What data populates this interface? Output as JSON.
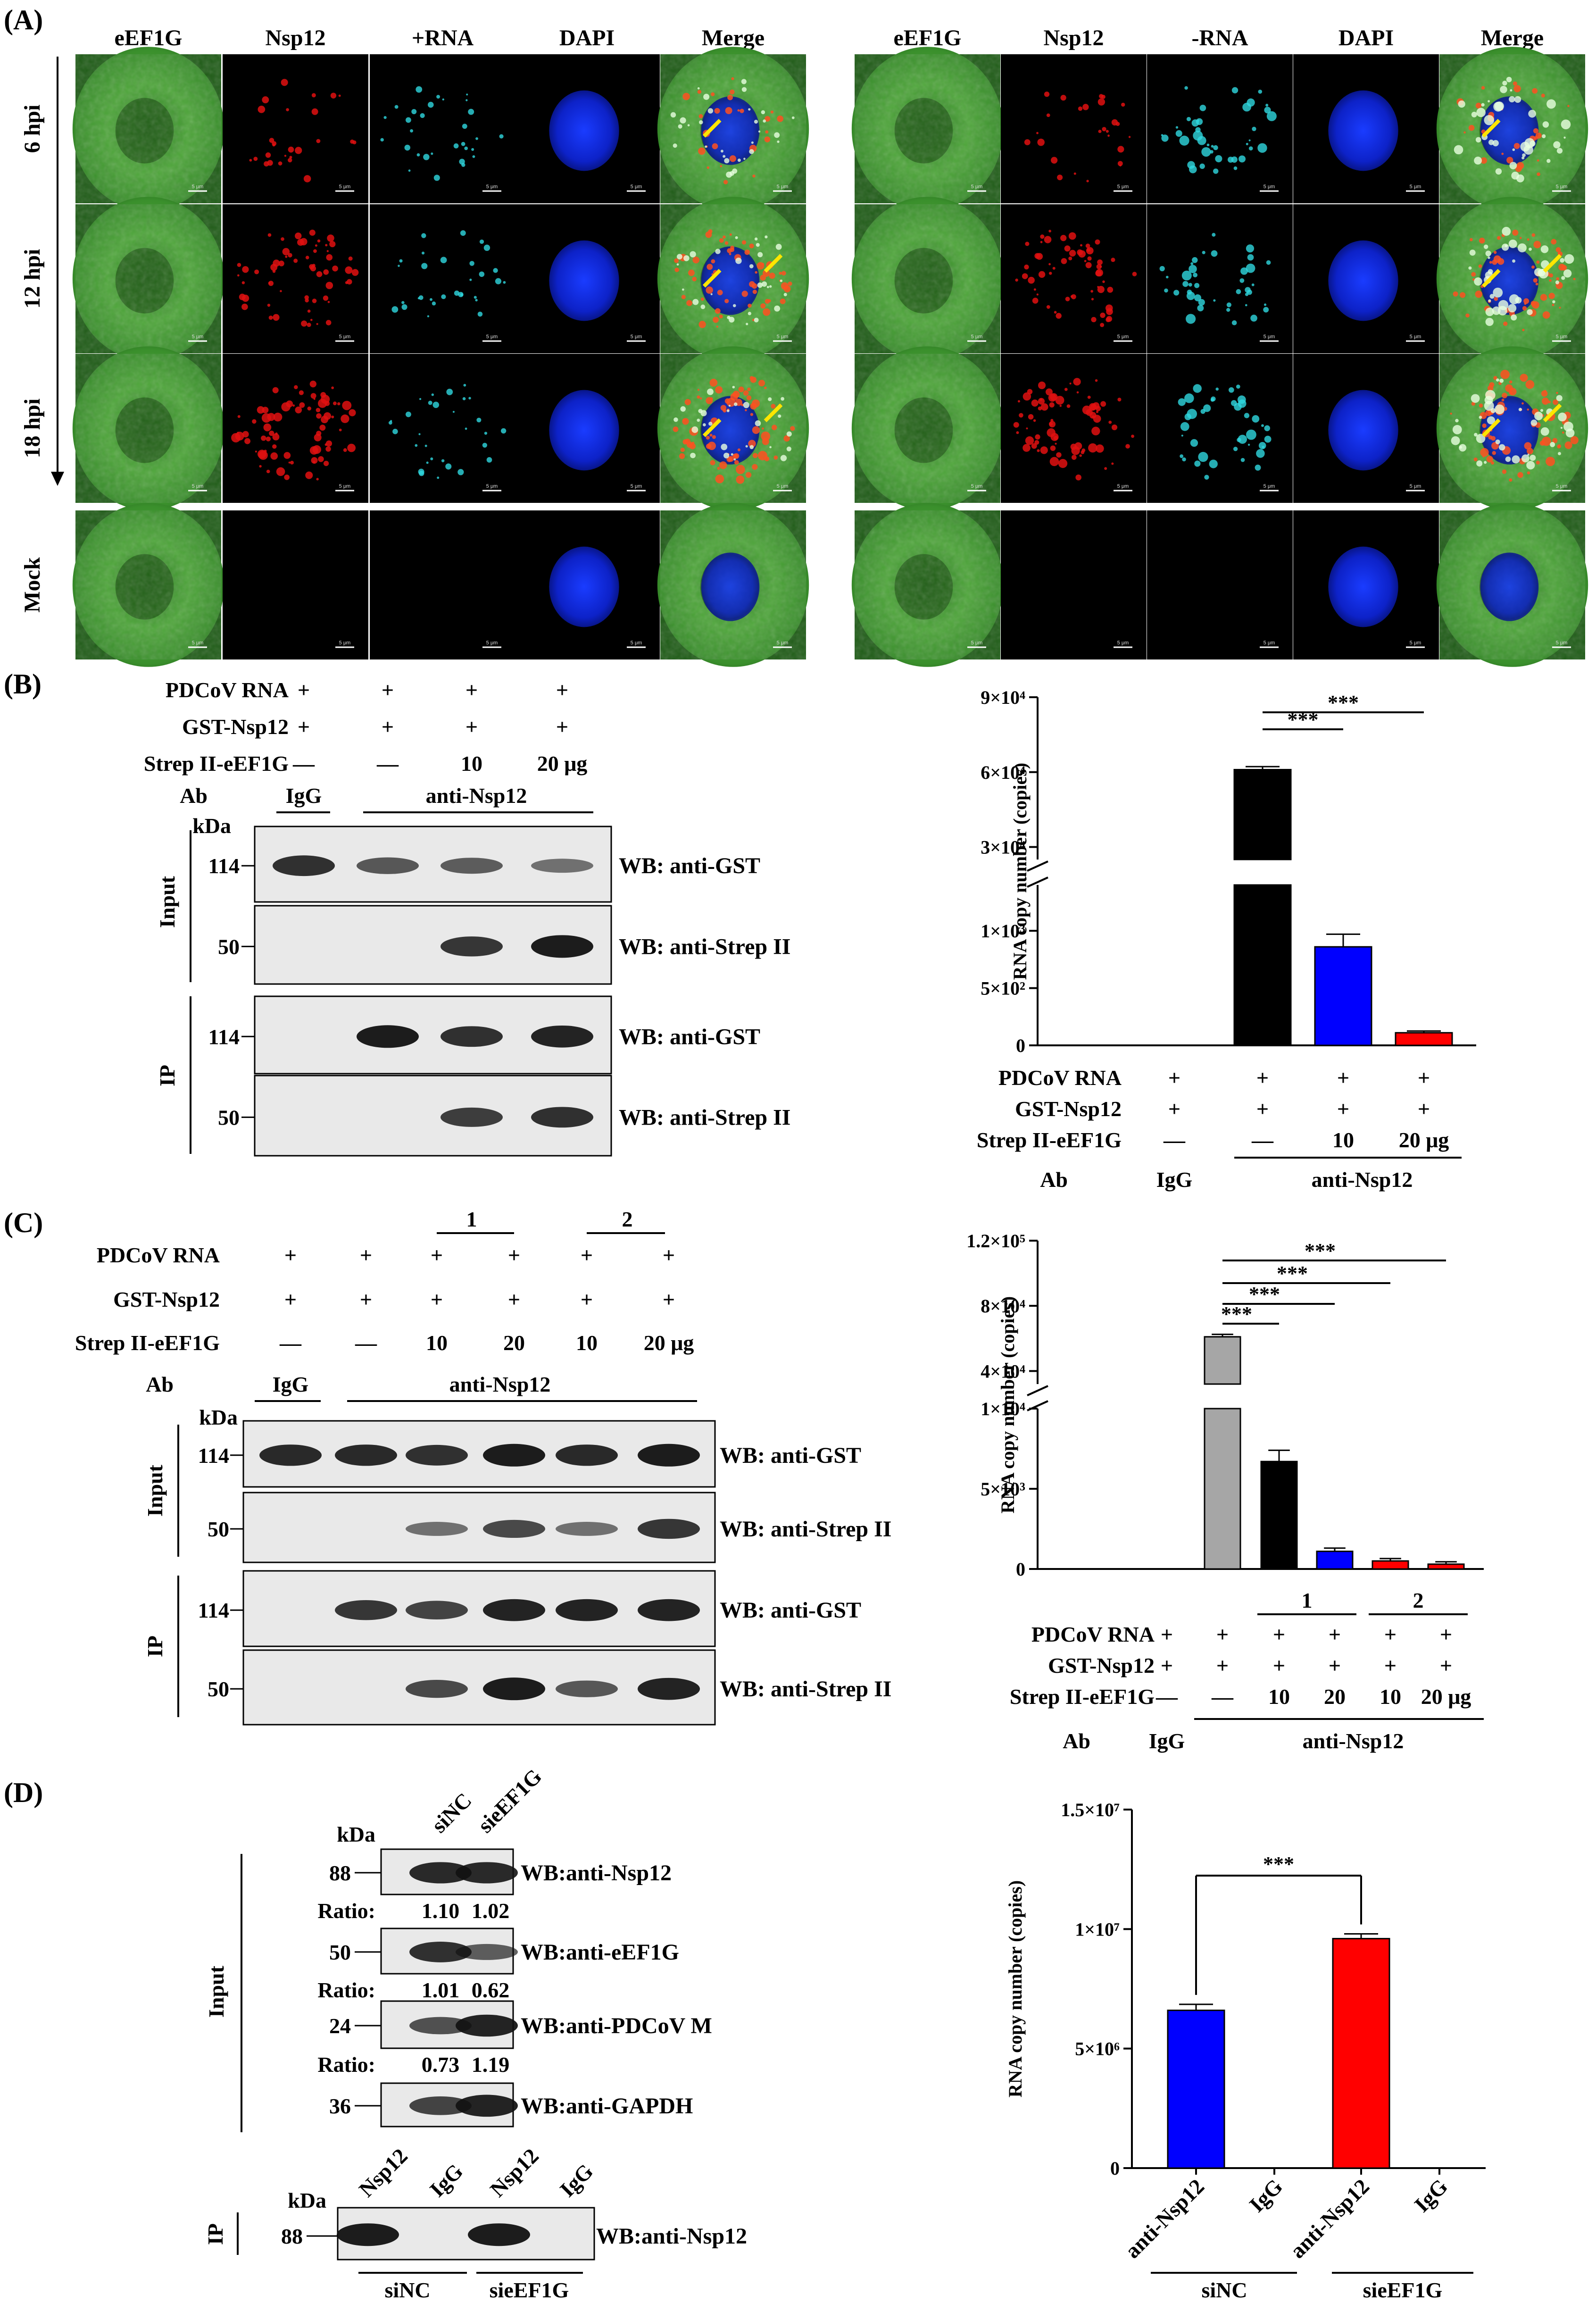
{
  "panels": {
    "a": "(A)",
    "b": "(B)",
    "c": "(C)",
    "d": "(D)"
  },
  "panel_a": {
    "headers_left": [
      "eEF1G",
      "Nsp12",
      "+RNA",
      "DAPI",
      "Merge"
    ],
    "headers_right": [
      "eEF1G",
      "Nsp12",
      "-RNA",
      "DAPI",
      "Merge"
    ],
    "rows": [
      "6 hpi",
      "12 hpi",
      "18 hpi",
      "Mock"
    ],
    "scale_bar": "5 μm"
  },
  "panel_b": {
    "conditions": [
      {
        "label": "PDCoV RNA",
        "values": [
          "+",
          "+",
          "+",
          "+"
        ]
      },
      {
        "label": "GST-Nsp12",
        "values": [
          "+",
          "+",
          "+",
          "+"
        ]
      },
      {
        "label": "Strep II-eEF1G",
        "values": [
          "—",
          "—",
          "10",
          "20 μg"
        ]
      }
    ],
    "ab_label": "Ab",
    "ab_igg": "IgG",
    "ab_anti": "anti-Nsp12",
    "kda": "kDa",
    "section_input": "Input",
    "section_ip": "IP",
    "blots": [
      {
        "mw": "114",
        "label": "WB: anti-GST"
      },
      {
        "mw": "50",
        "label": "WB: anti-Strep II"
      },
      {
        "mw": "114",
        "label": "WB: anti-GST"
      },
      {
        "mw": "50",
        "label": "WB: anti-Strep II"
      }
    ]
  },
  "panel_c": {
    "groups": [
      "1",
      "2"
    ],
    "conditions": [
      {
        "label": "PDCoV RNA",
        "values": [
          "+",
          "+",
          "+",
          "+",
          "+",
          "+"
        ]
      },
      {
        "label": "GST-Nsp12",
        "values": [
          "+",
          "+",
          "+",
          "+",
          "+",
          "+"
        ]
      },
      {
        "label": "Strep II-eEF1G",
        "values": [
          "—",
          "—",
          "10",
          "20",
          "10",
          "20 μg"
        ]
      }
    ],
    "ab_label": "Ab",
    "ab_igg": "IgG",
    "ab_anti": "anti-Nsp12",
    "kda": "kDa",
    "section_input": "Input",
    "section_ip": "IP",
    "blots": [
      {
        "mw": "114",
        "label": "WB: anti-GST"
      },
      {
        "mw": "50",
        "label": "WB: anti-Strep II"
      },
      {
        "mw": "114",
        "label": "WB: anti-GST"
      },
      {
        "mw": "50",
        "label": "WB: anti-Strep II"
      }
    ]
  },
  "panel_d": {
    "lanes": [
      "siNC",
      "sieEF1G"
    ],
    "kda": "kDa",
    "section_input": "Input",
    "section_ip": "IP",
    "blots": [
      {
        "mw": "88",
        "label": "WB:anti-Nsp12",
        "ratio_label": "Ratio:",
        "ratios": [
          "1.10",
          "1.02"
        ]
      },
      {
        "mw": "50",
        "label": "WB:anti-eEF1G",
        "ratio_label": "Ratio:",
        "ratios": [
          "1.01",
          "0.62"
        ]
      },
      {
        "mw": "24",
        "label": "WB:anti-PDCoV M",
        "ratio_label": "Ratio:",
        "ratios": [
          "0.73",
          "1.19"
        ]
      },
      {
        "mw": "36",
        "label": "WB:anti-GAPDH"
      }
    ],
    "ip_lanes": [
      "Nsp12",
      "IgG",
      "Nsp12",
      "IgG"
    ],
    "ip_blot": {
      "mw": "88",
      "label": "WB:anti-Nsp12"
    },
    "ip_groups": [
      "siNC",
      "sieEF1G"
    ]
  },
  "chart_data": [
    {
      "type": "bar",
      "ylabel": "RNA copy number (copies)",
      "broken_axis": true,
      "yticks_upper": [
        "3×10⁴",
        "6×10⁴",
        "9×10⁴"
      ],
      "yticks_lower": [
        "0",
        "5×10²",
        "1×10³"
      ],
      "values": [
        0,
        61000,
        860,
        110
      ],
      "errors": [
        0,
        1200,
        110,
        15
      ],
      "colors": [
        "#000000",
        "#000000",
        "#0000ff",
        "#ff0000"
      ],
      "significance": [
        {
          "from": 1,
          "to": 2,
          "label": "***"
        },
        {
          "from": 1,
          "to": 3,
          "label": "***"
        }
      ],
      "conditions": [
        {
          "label": "PDCoV RNA",
          "values": [
            "+",
            "+",
            "+",
            "+"
          ]
        },
        {
          "label": "GST-Nsp12",
          "values": [
            "+",
            "+",
            "+",
            "+"
          ]
        },
        {
          "label": "Strep II-eEF1G",
          "values": [
            "—",
            "—",
            "10",
            "20 μg"
          ]
        }
      ],
      "ab_label": "Ab",
      "ab_igg": "IgG",
      "ab_anti": "anti-Nsp12"
    },
    {
      "type": "bar",
      "ylabel": "RNA copy number (copies)",
      "broken_axis": true,
      "yticks_upper": [
        "4×10⁴",
        "8×10⁴",
        "1.2×10⁵"
      ],
      "yticks_lower": [
        "0",
        "5×10³",
        "1×10⁴"
      ],
      "values": [
        0,
        61000,
        6700,
        1100,
        500,
        300
      ],
      "errors": [
        0,
        1500,
        700,
        200,
        150,
        150
      ],
      "colors": [
        "#000000",
        "#a6a6a6",
        "#000000",
        "#0000ff",
        "#ff0000",
        "#ff0000"
      ],
      "significance": [
        {
          "from": 1,
          "to": 2,
          "label": "***"
        },
        {
          "from": 1,
          "to": 3,
          "label": "***"
        },
        {
          "from": 1,
          "to": 4,
          "label": "***"
        },
        {
          "from": 1,
          "to": 5,
          "label": "***"
        }
      ],
      "groups": [
        "1",
        "2"
      ],
      "conditions": [
        {
          "label": "PDCoV RNA",
          "values": [
            "+",
            "+",
            "+",
            "+",
            "+",
            "+"
          ]
        },
        {
          "label": "GST-Nsp12",
          "values": [
            "+",
            "+",
            "+",
            "+",
            "+",
            "+"
          ]
        },
        {
          "label": "Strep II-eEF1G",
          "values": [
            "—",
            "—",
            "10",
            "20",
            "10",
            "20 μg"
          ]
        }
      ],
      "ab_label": "Ab",
      "ab_igg": "IgG",
      "ab_anti": "anti-Nsp12"
    },
    {
      "type": "bar",
      "ylabel": "RNA copy number (copies)",
      "yticks": [
        "0",
        "5×10⁶",
        "1×10⁷",
        "1.5×10⁷"
      ],
      "ylim": [
        0,
        15000000
      ],
      "categories": [
        "anti-Nsp12",
        "IgG",
        "anti-Nsp12",
        "IgG"
      ],
      "values": [
        6600000,
        0,
        9600000,
        0
      ],
      "errors": [
        250000,
        0,
        200000,
        0
      ],
      "colors": [
        "#0000ff",
        "#000000",
        "#ff0000",
        "#000000"
      ],
      "significance": [
        {
          "from": 0,
          "to": 2,
          "label": "***"
        }
      ],
      "groups": [
        "siNC",
        "sieEF1G"
      ]
    }
  ]
}
